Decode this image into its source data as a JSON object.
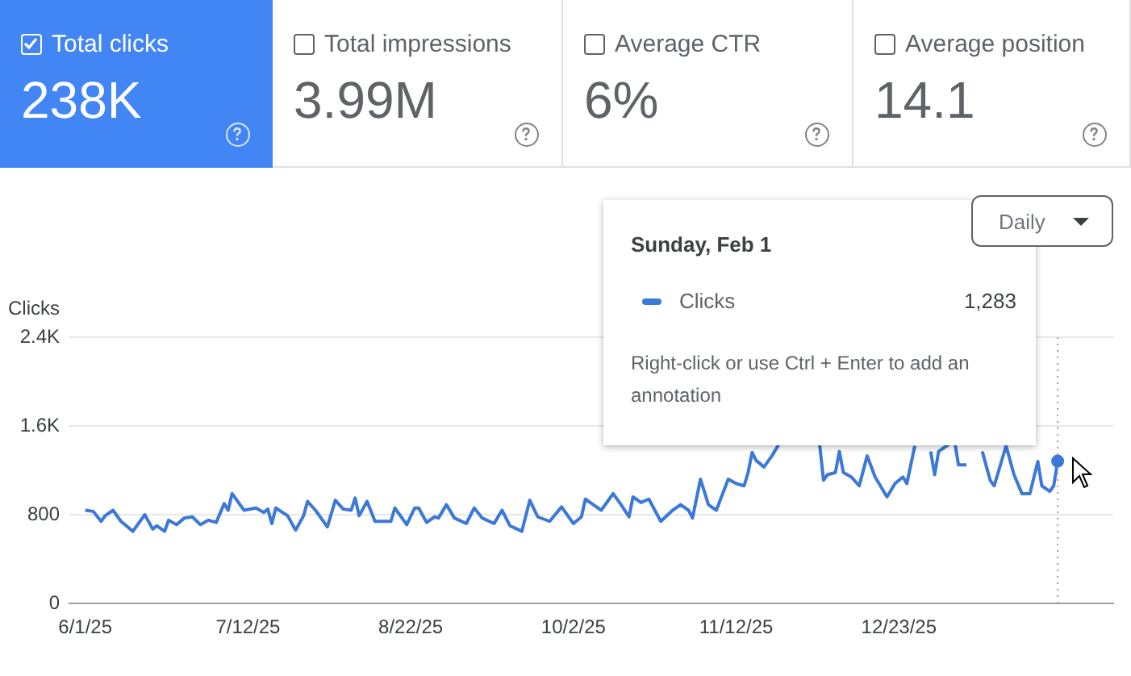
{
  "chart_data": {
    "type": "line",
    "ylabel": "Clicks",
    "annotations": [
      "Total clicks",
      "238K",
      "Total impressions",
      "3.99M",
      "Average CTR",
      "6%",
      "Average position",
      "14.1",
      "Daily",
      "Sunday, Feb 1",
      "Clicks",
      "1,283",
      "Right-click or use Ctrl + Enter to add an annotation"
    ],
    "series": [
      {
        "color": "#3b78d8",
        "x": [
          "2025-06-01",
          "2025-06-03",
          "2025-06-05",
          "2025-06-06",
          "2025-06-08",
          "2025-06-10",
          "2025-06-13",
          "2025-06-16",
          "2025-06-18",
          "2025-06-19",
          "2025-06-21",
          "2025-06-22",
          "2025-06-24",
          "2025-06-26",
          "2025-06-28",
          "2025-06-30",
          "2025-07-02",
          "2025-07-04",
          "2025-07-06",
          "2025-07-07",
          "2025-07-08",
          "2025-07-11",
          "2025-07-14",
          "2025-07-16",
          "2025-07-17",
          "2025-07-18",
          "2025-07-19",
          "2025-07-22",
          "2025-07-24",
          "2025-07-26",
          "2025-07-27",
          "2025-07-29",
          "2025-08-01",
          "2025-08-03",
          "2025-08-05",
          "2025-08-07",
          "2025-08-08",
          "2025-08-09",
          "2025-08-11",
          "2025-08-13",
          "2025-08-17",
          "2025-08-18",
          "2025-08-21",
          "2025-08-23",
          "2025-08-24",
          "2025-08-26",
          "2025-08-28",
          "2025-08-29",
          "2025-08-31",
          "2025-09-02",
          "2025-09-05",
          "2025-09-07",
          "2025-09-09",
          "2025-09-12",
          "2025-09-14",
          "2025-09-16",
          "2025-09-19",
          "2025-09-21",
          "2025-09-23",
          "2025-09-26",
          "2025-09-29",
          "2025-10-02",
          "2025-10-04",
          "2025-10-05",
          "2025-10-07",
          "2025-10-09",
          "2025-10-11",
          "2025-10-12",
          "2025-10-14",
          "2025-10-16",
          "2025-10-17",
          "2025-10-19",
          "2025-10-21",
          "2025-10-24",
          "2025-10-27",
          "2025-10-29",
          "2025-10-31",
          "2025-11-01",
          "2025-11-03",
          "2025-11-05",
          "2025-11-07",
          "2025-11-10",
          "2025-11-12",
          "2025-11-14",
          "2025-11-15",
          "2025-11-16",
          "2025-11-17",
          "2025-11-19",
          "2025-11-21",
          "2025-11-23",
          "2025-11-26",
          "2025-11-29",
          "2025-12-01",
          "2025-12-03",
          "2025-12-04",
          "2025-12-05",
          "2025-12-07",
          "2025-12-08",
          "2025-12-09",
          "2025-12-11",
          "2025-12-13",
          "2025-12-15",
          "2025-12-17",
          "2025-12-20",
          "2025-12-22",
          "2025-12-24",
          "2025-12-25",
          "2025-12-27",
          "2025-12-29",
          "2025-12-31",
          "2026-01-01",
          "2026-01-02",
          "2026-01-04",
          "2026-01-06",
          "2026-01-07",
          "2026-01-09",
          "2026-01-11",
          "2026-01-13",
          "2026-01-15",
          "2026-01-16",
          "2026-01-19",
          "2026-01-21",
          "2026-01-23",
          "2026-01-25",
          "2026-01-27",
          "2026-01-28",
          "2026-01-30",
          "2026-01-31",
          "2026-02-01"
        ],
        "values": [
          840,
          830,
          740,
          790,
          840,
          740,
          650,
          800,
          670,
          700,
          650,
          750,
          710,
          770,
          780,
          710,
          750,
          730,
          900,
          840,
          990,
          840,
          860,
          820,
          850,
          720,
          860,
          790,
          660,
          790,
          920,
          840,
          690,
          930,
          850,
          840,
          950,
          790,
          920,
          740,
          740,
          860,
          710,
          860,
          860,
          730,
          780,
          770,
          890,
          770,
          720,
          860,
          770,
          720,
          840,
          700,
          650,
          930,
          780,
          740,
          870,
          720,
          780,
          940,
          890,
          840,
          940,
          990,
          890,
          780,
          960,
          910,
          940,
          740,
          840,
          890,
          840,
          770,
          1120,
          890,
          840,
          1120,
          1080,
          1060,
          1180,
          1360,
          1290,
          1230,
          1330,
          1450,
          null,
          null,
          null,
          1440,
          1110,
          1160,
          1180,
          1370,
          1180,
          1140,
          1060,
          1330,
          1140,
          960,
          1080,
          1140,
          1080,
          1420,
          null,
          1370,
          1160,
          1370,
          1420,
          1470,
          1250,
          1250,
          null,
          1370,
          1110,
          1060,
          1420,
          1160,
          990,
          990,
          1280,
          1060,
          1010,
          1060,
          1283
        ]
      }
    ],
    "xlim": [
      "2025-05-28",
      "2026-02-15"
    ],
    "xticks": [
      {
        "value": "2025-06-01",
        "label": "6/1/25"
      },
      {
        "value": "2025-07-12",
        "label": "7/12/25"
      },
      {
        "value": "2025-08-22",
        "label": "8/22/25"
      },
      {
        "value": "2025-10-02",
        "label": "10/2/25"
      },
      {
        "value": "2025-11-12",
        "label": "11/12/25"
      },
      {
        "value": "2025-12-23",
        "label": "12/23/25"
      }
    ],
    "ylim": [
      0,
      2400
    ],
    "yticks": [
      0,
      800,
      {
        "value": 1600,
        "label": "1.6K"
      },
      {
        "value": 2400,
        "label": "2.4K"
      }
    ],
    "grid": "y",
    "marker": "none",
    "line_style": "solid",
    "legend": false,
    "ref_lines": [
      {
        "axis": "x",
        "value": "2026-02-01",
        "color": "#9e9e9e",
        "line_style": "dotted"
      }
    ]
  }
}
